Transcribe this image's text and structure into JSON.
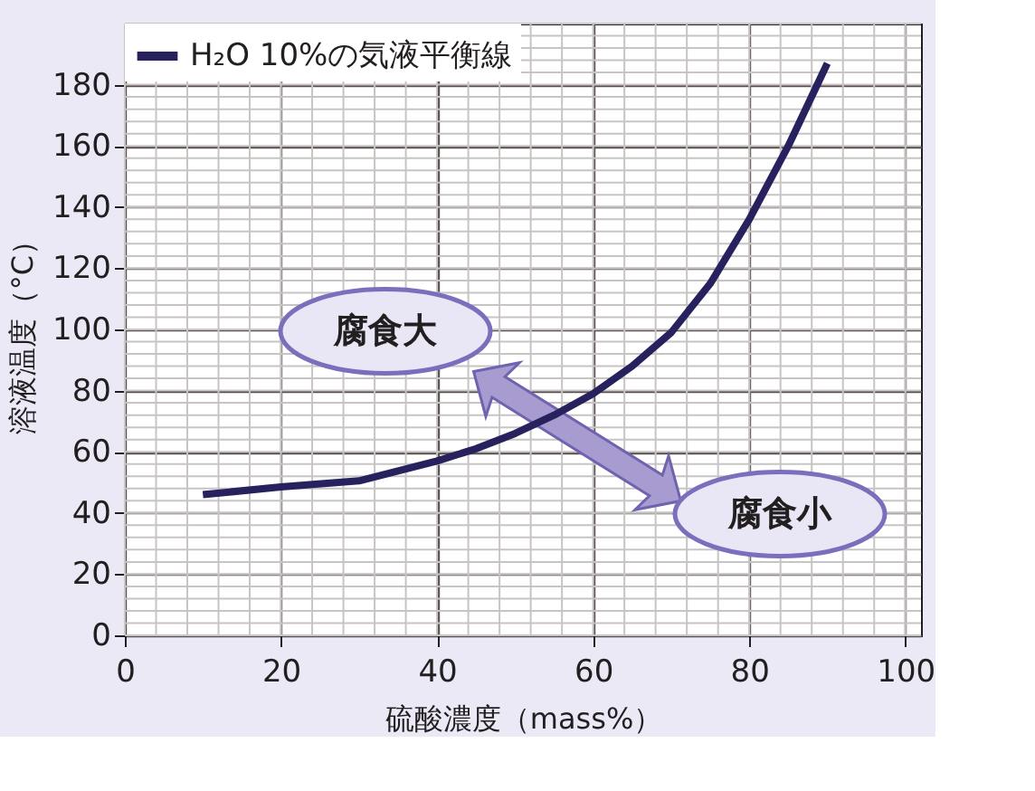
{
  "chart_data": {
    "type": "line",
    "xlabel": "硫酸濃度（mass%）",
    "ylabel": "溶液温度（°C）",
    "x": [
      10,
      20,
      30,
      40,
      45,
      50,
      55,
      60,
      65,
      70,
      75,
      80,
      85,
      90
    ],
    "series": [
      {
        "name": "H₂O 10%の気液平衡線",
        "color": "#27215e",
        "values": [
          46,
          48.5,
          50.5,
          57,
          61,
          66,
          72,
          79,
          88,
          99,
          115,
          136,
          160,
          187
        ]
      }
    ],
    "xlim": [
      0,
      102
    ],
    "ylim": [
      0,
      200
    ],
    "xticks": [
      0,
      20,
      40,
      60,
      80,
      100
    ],
    "yticks": [
      0,
      20,
      40,
      60,
      80,
      100,
      120,
      140,
      160,
      180
    ],
    "grid": true,
    "legend": "top left",
    "marker": "none",
    "line_style": "solid",
    "annotations": [
      "腐食大",
      "腐食小"
    ]
  }
}
